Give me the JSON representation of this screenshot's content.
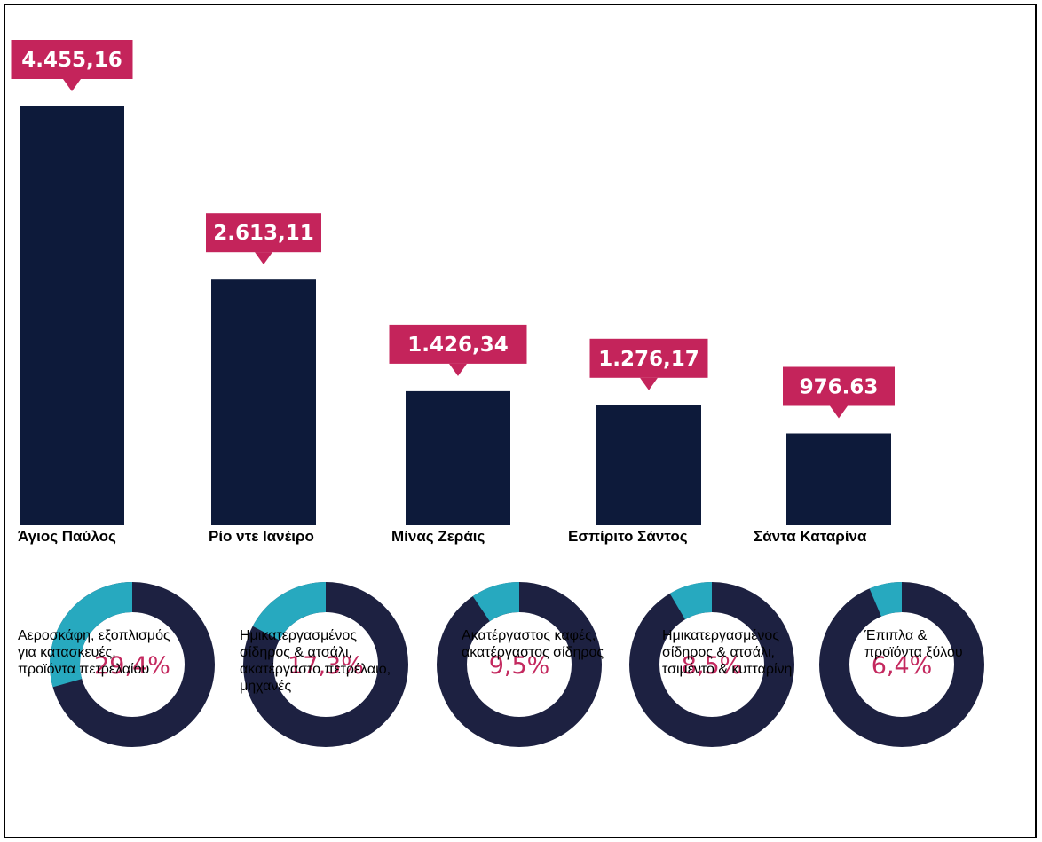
{
  "chart_data": [
    {
      "type": "bar",
      "categories": [
        "Άγιος Παύλος",
        "Ρίο ντε Ιανέιρο",
        "Μίνας Ζεράις",
        "Εσπίριτο Σάντος",
        "Σάντα Καταρίνα"
      ],
      "values": [
        4455.16,
        2613.11,
        1426.34,
        1276.17,
        976.63
      ],
      "data_labels": [
        "4.455,16",
        "2.613,11",
        "1.426,34",
        "1.276,17",
        "976.63"
      ],
      "title": "",
      "xlabel": "",
      "ylabel": "",
      "grid": false,
      "legend": "none",
      "colors": {
        "bar": "#0d1a3a",
        "label_box": "#c4245b",
        "label_text": "#ffffff"
      }
    },
    {
      "type": "pie",
      "variant": "donut",
      "categories": [
        "Άγιος Παύλος",
        "Ρίο ντε Ιανέιρο",
        "Μίνας Ζεράις",
        "Εσπίριτο Σάντος",
        "Σάντα Καταρίνα"
      ],
      "values": [
        29.4,
        17.3,
        9.5,
        8.5,
        6.4
      ],
      "data_labels": [
        "29,4%",
        "17,3%",
        "9,5%",
        "8,5%",
        "6,4%"
      ],
      "descriptions": [
        "Αεροσκάφη, εξοπλισμός\nγια κατασκευές,\nπροϊόντα πετρελαίου",
        "Ημικατεργασμένος\nσίδηρος & ατσάλι,\n ακατέργαστο πετρέλαιο,\n μηχανές",
        "Ακατέργαστος καφές,\nακατέργαστος σίδηρος",
        "Ημικατεργασμένος\nσίδηρος & ατσάλι,\nτσιμέντο & κυτταρίνη",
        "Έπιπλα &\nπροϊόντα ξύλου"
      ],
      "colors": {
        "share": "#27a9bf",
        "rest": "#1d2141",
        "text": "#c4295f"
      }
    }
  ]
}
